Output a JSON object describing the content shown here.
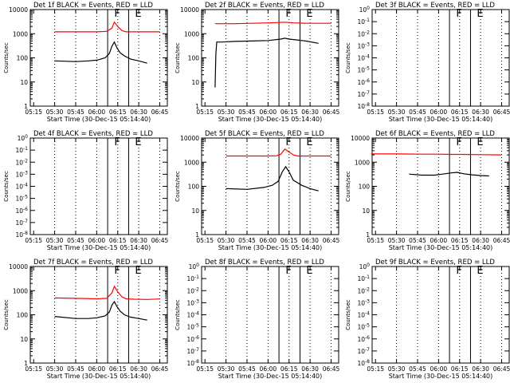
{
  "figure": {
    "xlabel": "Start Time (30-Dec-15 05:14:40)",
    "ylabel": "Counts/sec"
  },
  "chart_data": [
    {
      "type": "line",
      "title": "Det 1f BLACK = Events, RED = LLD",
      "xlabel": "Start Time (30-Dec-15 05:14:40)",
      "ylabel": "Counts/sec",
      "x_ticks": [
        "05:15",
        "05:30",
        "05:45",
        "06:00",
        "06:15",
        "06:30",
        "06:45"
      ],
      "y_ticks": [
        "1",
        "10",
        "100",
        "1000",
        "10000"
      ],
      "ylim": [
        1,
        10000
      ],
      "y_scale": "log",
      "markers": [
        {
          "label": "F",
          "x": 6.13
        },
        {
          "label": "E",
          "x": 6.38
        }
      ],
      "series": [
        {
          "color": "#ff0000",
          "x": [
            5.5,
            5.75,
            6.0,
            6.12,
            6.18,
            6.21,
            6.25,
            6.3,
            6.35,
            6.45,
            6.6,
            6.75
          ],
          "values": [
            1200,
            1200,
            1200,
            1250,
            1700,
            3000,
            2000,
            1350,
            1200,
            1200,
            1200,
            1200
          ]
        },
        {
          "color": "#000000",
          "x": [
            5.5,
            5.75,
            5.9,
            6.0,
            6.1,
            6.15,
            6.18,
            6.21,
            6.24,
            6.28,
            6.33,
            6.4,
            6.5,
            6.6
          ],
          "values": [
            75,
            70,
            75,
            80,
            100,
            150,
            300,
            450,
            260,
            160,
            120,
            90,
            75,
            60
          ]
        }
      ]
    },
    {
      "type": "line",
      "title": "Det 2f BLACK = Events, RED = LLD",
      "xlabel": "Start Time (30-Dec-15 05:14:40)",
      "ylabel": "Counts/sec",
      "x_ticks": [
        "05:15",
        "05:30",
        "05:45",
        "06:00",
        "06:15",
        "06:30",
        "06:45"
      ],
      "y_ticks": [
        "1",
        "10",
        "100",
        "1000",
        "10000"
      ],
      "ylim": [
        1,
        10000
      ],
      "y_scale": "log",
      "markers": [
        {
          "label": "F",
          "x": 6.13
        },
        {
          "label": "E",
          "x": 6.38
        }
      ],
      "series": [
        {
          "color": "#ff0000",
          "x": [
            5.37,
            5.6,
            5.8,
            6.0,
            6.1,
            6.2,
            6.3,
            6.45,
            6.75
          ],
          "values": [
            2600,
            2600,
            2700,
            2800,
            2900,
            3000,
            2800,
            2700,
            2700
          ]
        },
        {
          "color": "#000000",
          "x": [
            5.37,
            5.38,
            5.39,
            5.45,
            5.6,
            5.8,
            6.0,
            6.15,
            6.2,
            6.25,
            6.35,
            6.45,
            6.6
          ],
          "values": [
            6,
            150,
            450,
            450,
            480,
            500,
            520,
            600,
            650,
            600,
            550,
            500,
            400
          ]
        }
      ]
    },
    {
      "type": "line",
      "title": "Det 3f BLACK = Events, RED = LLD",
      "xlabel": "Start Time (30-Dec-15 05:14:40)",
      "ylabel": "Counts/sec",
      "x_ticks": [
        "05:15",
        "05:30",
        "05:45",
        "06:00",
        "06:15",
        "06:30",
        "06:45"
      ],
      "y_ticks": [
        "10^-8",
        "10^-7",
        "10^-6",
        "10^-5",
        "10^-4",
        "10^-3",
        "10^-2",
        "10^-1",
        "10^0"
      ],
      "ylim": [
        1e-08,
        1
      ],
      "y_scale": "log",
      "markers": [
        {
          "label": "F",
          "x": 6.13
        },
        {
          "label": "E",
          "x": 6.38
        }
      ],
      "series": []
    },
    {
      "type": "line",
      "title": "Det 4f BLACK = Events, RED = LLD",
      "xlabel": "Start Time (30-Dec-15 05:14:40)",
      "ylabel": "Counts/sec",
      "x_ticks": [
        "05:15",
        "05:30",
        "05:45",
        "06:00",
        "06:15",
        "06:30",
        "06:45"
      ],
      "y_ticks": [
        "10^-8",
        "10^-7",
        "10^-6",
        "10^-5",
        "10^-4",
        "10^-3",
        "10^-2",
        "10^-1",
        "10^0"
      ],
      "ylim": [
        1e-08,
        1
      ],
      "y_scale": "log",
      "markers": [
        {
          "label": "F",
          "x": 6.13
        },
        {
          "label": "E",
          "x": 6.38
        }
      ],
      "series": []
    },
    {
      "type": "line",
      "title": "Det 5f BLACK = Events, RED = LLD",
      "xlabel": "Start Time (30-Dec-15 05:14:40)",
      "ylabel": "Counts/sec",
      "x_ticks": [
        "05:15",
        "05:30",
        "05:45",
        "06:00",
        "06:15",
        "06:30",
        "06:45"
      ],
      "y_ticks": [
        "1",
        "10",
        "100",
        "1000",
        "10000"
      ],
      "ylim": [
        1,
        10000
      ],
      "y_scale": "log",
      "markers": [
        {
          "label": "F",
          "x": 6.13
        },
        {
          "label": "E",
          "x": 6.38
        }
      ],
      "series": [
        {
          "color": "#ff0000",
          "x": [
            5.5,
            5.75,
            6.0,
            6.1,
            6.15,
            6.2,
            6.24,
            6.3,
            6.35,
            6.45,
            6.75
          ],
          "values": [
            1800,
            1800,
            1800,
            1850,
            2100,
            3500,
            2800,
            2000,
            1800,
            1800,
            1800
          ]
        },
        {
          "color": "#000000",
          "x": [
            5.5,
            5.75,
            5.95,
            6.05,
            6.12,
            6.17,
            6.21,
            6.25,
            6.3,
            6.4,
            6.5,
            6.6
          ],
          "values": [
            80,
            75,
            90,
            110,
            160,
            400,
            650,
            400,
            180,
            110,
            80,
            65
          ]
        }
      ]
    },
    {
      "type": "line",
      "title": "Det 6f BLACK = Events, RED = LLD",
      "xlabel": "Start Time (30-Dec-15 05:14:40)",
      "ylabel": "Counts/sec",
      "x_ticks": [
        "05:15",
        "05:30",
        "05:45",
        "06:00",
        "06:15",
        "06:30",
        "06:45"
      ],
      "y_ticks": [
        "1",
        "10",
        "100",
        "1000",
        "10000"
      ],
      "ylim": [
        1,
        10000
      ],
      "y_scale": "log",
      "markers": [
        {
          "label": "F",
          "x": 6.13
        },
        {
          "label": "E",
          "x": 6.38
        }
      ],
      "series": [
        {
          "color": "#ff0000",
          "x": [
            5.2,
            5.5,
            5.8,
            6.0,
            6.15,
            6.3,
            6.5,
            6.75
          ],
          "values": [
            2200,
            2200,
            2150,
            2150,
            2100,
            2100,
            2050,
            2000
          ]
        },
        {
          "color": "#000000",
          "x": [
            5.65,
            5.8,
            5.95,
            6.05,
            6.15,
            6.22,
            6.3,
            6.4,
            6.5,
            6.6
          ],
          "values": [
            320,
            290,
            290,
            320,
            360,
            380,
            330,
            300,
            280,
            270
          ]
        }
      ]
    },
    {
      "type": "line",
      "title": "Det 7f BLACK = Events, RED = LLD",
      "xlabel": "Start Time (30-Dec-15 05:14:40)",
      "ylabel": "Counts/sec",
      "x_ticks": [
        "05:15",
        "05:30",
        "05:45",
        "06:00",
        "06:15",
        "06:30",
        "06:45"
      ],
      "y_ticks": [
        "1",
        "10",
        "100",
        "1000",
        "10000"
      ],
      "ylim": [
        1,
        10000
      ],
      "y_scale": "log",
      "markers": [
        {
          "label": "F",
          "x": 6.13
        },
        {
          "label": "E",
          "x": 6.38
        }
      ],
      "series": [
        {
          "color": "#ff0000",
          "x": [
            5.5,
            5.75,
            6.0,
            6.12,
            6.18,
            6.21,
            6.25,
            6.3,
            6.35,
            6.45,
            6.6,
            6.75
          ],
          "values": [
            500,
            480,
            460,
            480,
            800,
            1500,
            900,
            550,
            460,
            440,
            430,
            450
          ]
        },
        {
          "color": "#000000",
          "x": [
            5.5,
            5.75,
            5.9,
            6.0,
            6.1,
            6.15,
            6.18,
            6.21,
            6.24,
            6.28,
            6.33,
            6.4,
            6.5,
            6.6
          ],
          "values": [
            85,
            70,
            70,
            75,
            90,
            130,
            250,
            350,
            220,
            140,
            100,
            80,
            70,
            60
          ]
        }
      ]
    },
    {
      "type": "line",
      "title": "Det 8f BLACK = Events, RED = LLD",
      "xlabel": "Start Time (30-Dec-15 05:14:40)",
      "ylabel": "Counts/sec",
      "x_ticks": [
        "05:15",
        "05:30",
        "05:45",
        "06:00",
        "06:15",
        "06:30",
        "06:45"
      ],
      "y_ticks": [
        "10^-8",
        "10^-7",
        "10^-6",
        "10^-5",
        "10^-4",
        "10^-3",
        "10^-2",
        "10^-1",
        "10^0"
      ],
      "ylim": [
        1e-08,
        1
      ],
      "y_scale": "log",
      "markers": [
        {
          "label": "F",
          "x": 6.13
        },
        {
          "label": "E",
          "x": 6.38
        }
      ],
      "series": []
    },
    {
      "type": "line",
      "title": "Det 9f BLACK = Events, RED = LLD",
      "xlabel": "Start Time (30-Dec-15 05:14:40)",
      "ylabel": "Counts/sec",
      "x_ticks": [
        "05:15",
        "05:30",
        "05:45",
        "06:00",
        "06:15",
        "06:30",
        "06:45"
      ],
      "y_ticks": [
        "10^-8",
        "10^-7",
        "10^-6",
        "10^-5",
        "10^-4",
        "10^-3",
        "10^-2",
        "10^-1",
        "10^0"
      ],
      "ylim": [
        1e-08,
        1
      ],
      "y_scale": "log",
      "markers": [
        {
          "label": "F",
          "x": 6.13
        },
        {
          "label": "E",
          "x": 6.38
        }
      ],
      "series": []
    }
  ]
}
